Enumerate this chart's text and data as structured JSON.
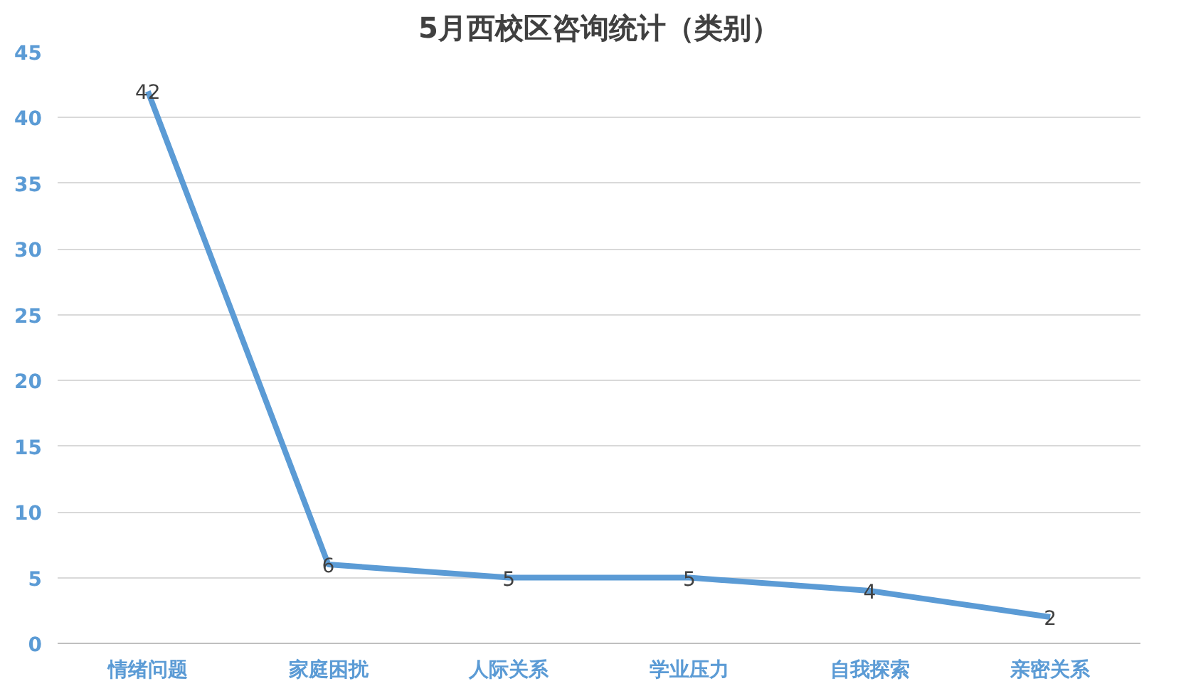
{
  "chart_data": {
    "type": "line",
    "title": "5月西校区咨询统计（类别）",
    "categories": [
      "情绪问题",
      "家庭困扰",
      "人际关系",
      "学业压力",
      "自我探索",
      "亲密关系"
    ],
    "series": [
      {
        "color": "#5b9bd5",
        "values": [
          42,
          6,
          5,
          5,
          4,
          2
        ]
      }
    ],
    "ylim": [
      0,
      45
    ],
    "yticks": [
      0,
      5,
      10,
      15,
      20,
      25,
      30,
      35,
      40,
      45
    ],
    "grid": "y",
    "data_labels": true,
    "marker": "none",
    "line_style": "solid"
  }
}
